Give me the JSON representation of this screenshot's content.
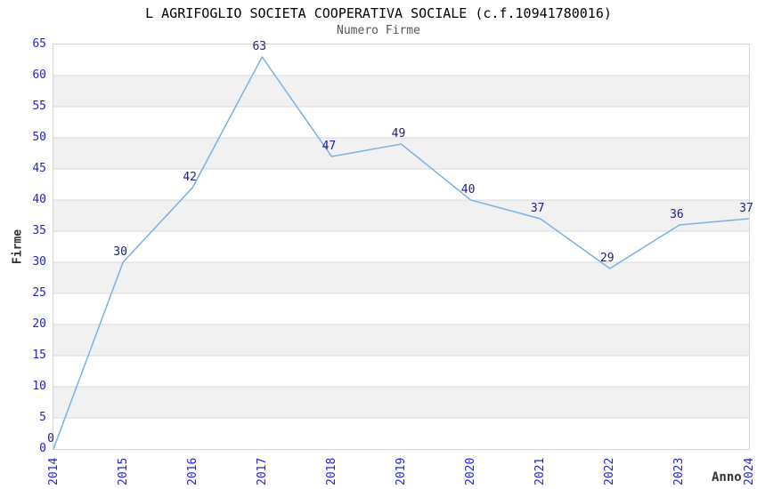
{
  "chart_data": {
    "type": "line",
    "title": "L AGRIFOGLIO SOCIETA COOPERATIVA SOCIALE (c.f.10941780016)",
    "subtitle": "Numero Firme",
    "xlabel": "Anno",
    "ylabel": "Firme",
    "categories": [
      "2014",
      "2015",
      "2016",
      "2017",
      "2018",
      "2019",
      "2020",
      "2021",
      "2022",
      "2023",
      "2024"
    ],
    "values": [
      0,
      30,
      42,
      63,
      47,
      49,
      40,
      37,
      29,
      36,
      37
    ],
    "value_labels": [
      "0",
      "30",
      "42",
      "63",
      "47",
      "49",
      "40",
      "37",
      "29",
      "36",
      "37"
    ],
    "ytick_labels": [
      "0",
      "5",
      "10",
      "15",
      "20",
      "25",
      "30",
      "35",
      "40",
      "45",
      "50",
      "55",
      "60",
      "65"
    ],
    "ylim": [
      0,
      65
    ],
    "ytick_step": 5,
    "grid": "horizontal-bands",
    "legend": "none",
    "colors": {
      "line": "#7aafe5",
      "tick_label": "#2323cc",
      "value_label": "#1c1c80",
      "band_gray": "#f1f1f1",
      "gridline": "#d9d9d9",
      "plot_border": "#d4d4d4",
      "title": "#000000",
      "subtitle": "#555555",
      "axis_title": "#333333",
      "background": "#ffffff"
    }
  }
}
